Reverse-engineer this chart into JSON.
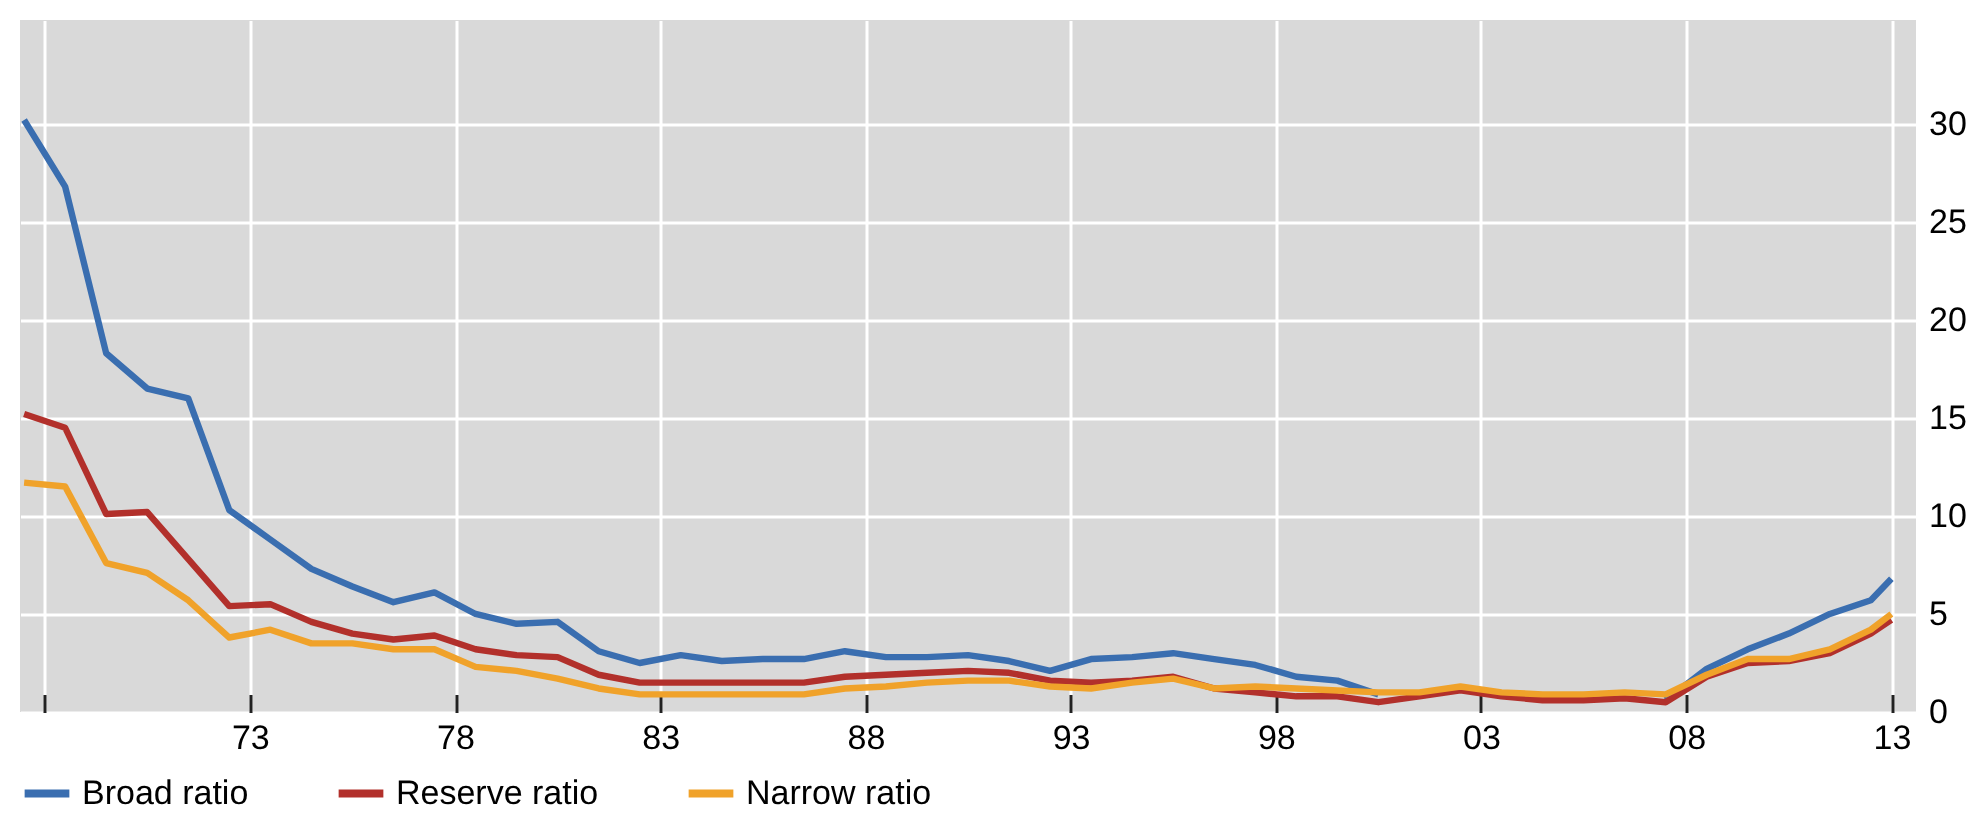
{
  "chart_data": {
    "type": "line",
    "x": [
      1967.5,
      1968.5,
      1969.5,
      1970.5,
      1971.5,
      1972.5,
      1973.5,
      1974.5,
      1975.5,
      1976.5,
      1977.5,
      1978.5,
      1979.5,
      1980.5,
      1981.5,
      1982.5,
      1983.5,
      1984.5,
      1985.5,
      1986.5,
      1987.5,
      1988.5,
      1989.5,
      1990.5,
      1991.5,
      1992.5,
      1993.5,
      1994.5,
      1995.5,
      1996.5,
      1997.5,
      1998.5,
      1999.5,
      2000.5,
      2001.5,
      2002.5,
      2003.5,
      2004.5,
      2005.5,
      2006.5,
      2007.5,
      2008.5,
      2009.5,
      2010.5,
      2011.5,
      2012.5,
      2013
    ],
    "series": [
      {
        "name": "Broad ratio",
        "color": "#3a6eb0",
        "values": [
          30.2,
          26.8,
          18.3,
          16.5,
          16.0,
          10.3,
          8.8,
          7.3,
          6.4,
          5.6,
          6.1,
          5.0,
          4.5,
          4.6,
          3.1,
          2.5,
          2.9,
          2.6,
          2.7,
          2.7,
          3.1,
          2.8,
          2.8,
          2.9,
          2.6,
          2.1,
          2.7,
          2.8,
          3.0,
          2.7,
          2.4,
          1.8,
          1.6,
          0.9,
          null,
          null,
          null,
          null,
          null,
          null,
          0.6,
          2.2,
          3.2,
          4.0,
          5.0,
          5.7,
          6.8
        ]
      },
      {
        "name": "Reserve ratio",
        "color": "#b2302b",
        "values": [
          15.2,
          14.5,
          10.1,
          10.2,
          7.8,
          5.4,
          5.5,
          4.6,
          4.0,
          3.7,
          3.9,
          3.2,
          2.9,
          2.8,
          1.9,
          1.5,
          1.5,
          1.5,
          1.5,
          1.5,
          1.8,
          1.9,
          2.0,
          2.1,
          2.0,
          1.6,
          1.5,
          1.6,
          1.8,
          1.2,
          1.0,
          0.8,
          0.8,
          0.5,
          0.8,
          1.1,
          0.8,
          0.6,
          0.6,
          0.7,
          0.5,
          1.8,
          2.5,
          2.6,
          3.0,
          4.0,
          4.7
        ]
      },
      {
        "name": "Narrow ratio",
        "color": "#f0a22a",
        "values": [
          11.7,
          11.5,
          7.6,
          7.1,
          5.7,
          3.8,
          4.2,
          3.5,
          3.5,
          3.2,
          3.2,
          2.3,
          2.1,
          1.7,
          1.2,
          0.9,
          0.9,
          0.9,
          0.9,
          0.9,
          1.2,
          1.3,
          1.5,
          1.6,
          1.6,
          1.3,
          1.2,
          1.5,
          1.7,
          1.2,
          1.3,
          1.2,
          1.1,
          1.0,
          1.0,
          1.3,
          1.0,
          0.9,
          0.9,
          1.0,
          0.9,
          1.9,
          2.7,
          2.7,
          3.2,
          4.2,
          5.0
        ]
      }
    ],
    "xlim": [
      1967.4,
      2013.6
    ],
    "xticks": [
      {
        "value": 1968,
        "label": null
      },
      {
        "value": 1973,
        "label": "73"
      },
      {
        "value": 1978,
        "label": "78"
      },
      {
        "value": 1983,
        "label": "83"
      },
      {
        "value": 1988,
        "label": "88"
      },
      {
        "value": 1993,
        "label": "93"
      },
      {
        "value": 1998,
        "label": "98"
      },
      {
        "value": 2003,
        "label": "03"
      },
      {
        "value": 2008,
        "label": "08"
      },
      {
        "value": 2013,
        "label": "13"
      }
    ],
    "ylim": [
      0,
      35.3
    ],
    "yticks": [
      0,
      5,
      10,
      15,
      20,
      25,
      30
    ],
    "grid": true,
    "legend": "bottom left",
    "line_style": "solid",
    "marker": "none"
  }
}
